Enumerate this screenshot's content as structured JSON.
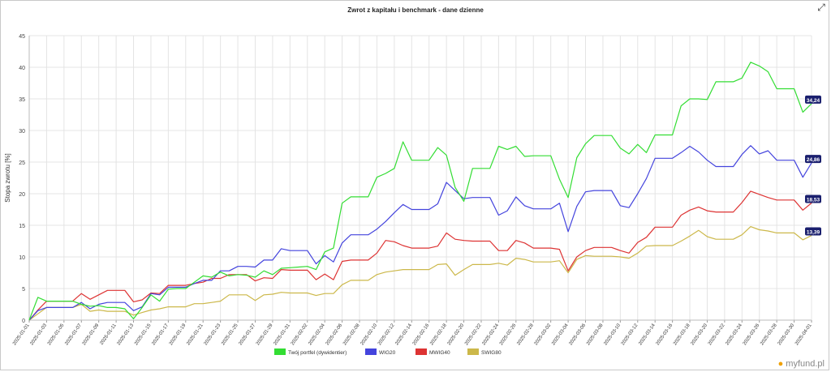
{
  "chart_data": {
    "type": "line",
    "title": "Zwrot z kapitału i benchmark - dane dzienne",
    "ylabel": "Stopa zwrotu [%]",
    "xlabel": "",
    "ylim": [
      0,
      45
    ],
    "yticks": [
      0,
      5,
      10,
      15,
      20,
      25,
      30,
      35,
      40,
      45
    ],
    "grid": true,
    "legend_position": "bottom",
    "x": [
      "2025-01-01",
      "2025-01-02",
      "2025-01-03",
      "2025-01-04",
      "2025-01-05",
      "2025-01-06",
      "2025-01-07",
      "2025-01-08",
      "2025-01-09",
      "2025-01-10",
      "2025-01-11",
      "2025-01-12",
      "2025-01-13",
      "2025-01-14",
      "2025-01-15",
      "2025-01-16",
      "2025-01-17",
      "2025-01-18",
      "2025-01-19",
      "2025-01-20",
      "2025-01-21",
      "2025-01-22",
      "2025-01-23",
      "2025-01-24",
      "2025-01-25",
      "2025-01-26",
      "2025-01-27",
      "2025-01-28",
      "2025-01-29",
      "2025-01-30",
      "2025-01-31",
      "2025-02-01",
      "2025-02-02",
      "2025-02-03",
      "2025-02-04",
      "2025-02-05",
      "2025-02-06",
      "2025-02-07",
      "2025-02-08",
      "2025-02-09",
      "2025-02-10",
      "2025-02-11",
      "2025-02-12",
      "2025-02-13",
      "2025-02-14",
      "2025-02-15",
      "2025-02-16",
      "2025-02-17",
      "2025-02-18",
      "2025-02-19",
      "2025-02-20",
      "2025-02-21",
      "2025-02-22",
      "2025-02-23",
      "2025-02-24",
      "2025-02-25",
      "2025-02-26",
      "2025-02-27",
      "2025-02-28",
      "2025-03-01",
      "2025-03-02",
      "2025-03-03",
      "2025-03-04",
      "2025-03-05",
      "2025-03-06",
      "2025-03-07",
      "2025-03-08",
      "2025-03-09",
      "2025-03-10",
      "2025-03-11",
      "2025-03-12",
      "2025-03-13",
      "2025-03-14",
      "2025-03-15",
      "2025-03-16",
      "2025-03-17",
      "2025-03-18",
      "2025-03-19",
      "2025-03-20",
      "2025-03-21",
      "2025-03-22",
      "2025-03-23",
      "2025-03-24",
      "2025-03-25",
      "2025-03-26",
      "2025-03-27",
      "2025-03-28",
      "2025-03-29",
      "2025-03-30",
      "2025-03-31",
      "2025-04-01"
    ],
    "xtick_labels": [
      "2025-01-01",
      "2025-01-03",
      "2025-01-05",
      "2025-01-07",
      "2025-01-09",
      "2025-01-11",
      "2025-01-13",
      "2025-01-15",
      "2025-01-17",
      "2025-01-19",
      "2025-01-21",
      "2025-01-23",
      "2025-01-25",
      "2025-01-27",
      "2025-01-29",
      "2025-01-31",
      "2025-02-02",
      "2025-02-04",
      "2025-02-06",
      "2025-02-08",
      "2025-02-10",
      "2025-02-12",
      "2025-02-14",
      "2025-02-16",
      "2025-02-18",
      "2025-02-20",
      "2025-02-22",
      "2025-02-24",
      "2025-02-26",
      "2025-02-28",
      "2025-03-02",
      "2025-03-04",
      "2025-03-06",
      "2025-03-08",
      "2025-03-10",
      "2025-03-12",
      "2025-03-14",
      "2025-03-16",
      "2025-03-18",
      "2025-03-20",
      "2025-03-22",
      "2025-03-24",
      "2025-03-26",
      "2025-03-28",
      "2025-03-30",
      "2025-04-01"
    ],
    "series": [
      {
        "name": "Twój portfel (dywidentier)",
        "color": "#33dd33",
        "end_label": "34,24",
        "values": [
          0,
          3.6,
          3,
          3,
          3,
          3,
          2.5,
          2.2,
          2.3,
          2,
          2,
          1.8,
          0.2,
          2,
          4,
          3,
          4.9,
          5,
          5,
          6,
          7,
          6.8,
          7.6,
          7,
          7.2,
          7.1,
          6.8,
          7.8,
          7.2,
          8.2,
          8.3,
          8.4,
          8.5,
          8,
          10.8,
          11.4,
          18.5,
          19.5,
          19.5,
          19.5,
          22.6,
          23.2,
          24,
          28.2,
          25.3,
          25.3,
          25.3,
          27.3,
          26.1,
          21,
          18.8,
          24,
          24,
          24,
          27.5,
          27,
          27.5,
          25.9,
          26,
          26,
          26,
          22.3,
          19.4,
          25.7,
          27.9,
          29.2,
          29.2,
          29.2,
          27.2,
          26.3,
          27.8,
          26.5,
          29.3,
          29.3,
          29.3,
          33.9,
          35,
          35,
          34.9,
          37.7,
          37.7,
          37.7,
          38.3,
          40.8,
          40.2,
          39.3,
          36.6,
          36.6,
          36.6,
          32.9,
          34.24
        ]
      },
      {
        "name": "WIG20",
        "color": "#4444dd",
        "end_label": "24,86",
        "values": [
          0,
          1.5,
          2,
          2,
          2,
          2,
          2.8,
          1.8,
          2.5,
          2.8,
          2.8,
          2.8,
          1.5,
          2.1,
          4.2,
          4,
          5.2,
          5.2,
          5.2,
          5.8,
          6.3,
          6.3,
          7.8,
          7.8,
          8.5,
          8.5,
          8.4,
          9.5,
          9.5,
          11.3,
          11,
          11,
          11,
          8.9,
          10.2,
          9.2,
          12.2,
          13.5,
          13.5,
          13.5,
          14.4,
          15.6,
          17,
          18.3,
          17.5,
          17.5,
          17.5,
          18.4,
          21.8,
          20.5,
          19.2,
          19.4,
          19.4,
          19.4,
          16.6,
          17.3,
          19.5,
          18.1,
          17.6,
          17.6,
          17.6,
          18.5,
          14,
          18,
          20.3,
          20.5,
          20.5,
          20.5,
          18.1,
          17.8,
          20,
          22.4,
          25.6,
          25.6,
          25.6,
          26.5,
          27.5,
          26.6,
          25.3,
          24.3,
          24.3,
          24.3,
          26.2,
          27.6,
          26.3,
          26.8,
          25.3,
          25.3,
          25.3,
          22.6,
          24.86
        ]
      },
      {
        "name": "MWIG40",
        "color": "#dd3333",
        "end_label": "18,53",
        "values": [
          0,
          1.6,
          3,
          3,
          3,
          3,
          4.2,
          3.3,
          4,
          4.7,
          4.7,
          4.7,
          2.9,
          3.2,
          4.3,
          4.2,
          5.5,
          5.5,
          5.5,
          5.8,
          6,
          6.6,
          6.6,
          7.2,
          7.2,
          7.2,
          6.2,
          6.7,
          6.6,
          8,
          7.9,
          7.9,
          7.9,
          6.4,
          7.3,
          6.4,
          9.3,
          9.5,
          9.5,
          9.5,
          10.6,
          12.6,
          12.4,
          11.8,
          11.4,
          11.4,
          11.4,
          11.7,
          13.8,
          12.8,
          12.6,
          12.5,
          12.5,
          12.5,
          11,
          11,
          12.6,
          12.2,
          11.4,
          11.4,
          11.4,
          11.2,
          7.8,
          10,
          11,
          11.5,
          11.5,
          11.5,
          11,
          10.6,
          12.3,
          13.1,
          14.7,
          14.7,
          14.7,
          16.6,
          17.4,
          17.9,
          17.3,
          17.1,
          17.1,
          17.1,
          18.6,
          20.4,
          19.9,
          19.4,
          19,
          19,
          19,
          17.4,
          18.53
        ]
      },
      {
        "name": "SWIG80",
        "color": "#ccb84a",
        "end_label": "13,39",
        "values": [
          0,
          1,
          2,
          2,
          2,
          2,
          2.5,
          1.4,
          1.6,
          1.4,
          1.4,
          1.4,
          0.8,
          1.2,
          1.6,
          1.8,
          2.1,
          2.1,
          2.1,
          2.6,
          2.6,
          2.8,
          3,
          4,
          4,
          4,
          3.1,
          4,
          4.1,
          4.4,
          4.3,
          4.3,
          4.3,
          3.9,
          4.2,
          4.2,
          5.6,
          6.3,
          6.3,
          6.3,
          7.2,
          7.6,
          7.8,
          8,
          8,
          8,
          8,
          8.8,
          8.9,
          7.1,
          8,
          8.8,
          8.8,
          8.8,
          9,
          8.7,
          9.8,
          9.6,
          9.2,
          9.2,
          9.2,
          9.4,
          7.5,
          9.6,
          10.2,
          10.1,
          10.1,
          10.1,
          10,
          9.8,
          10.6,
          11.7,
          11.8,
          11.8,
          11.8,
          12.5,
          13.3,
          14.2,
          13.2,
          12.8,
          12.8,
          12.8,
          13.5,
          14.8,
          14.3,
          14.1,
          13.8,
          13.8,
          13.8,
          12.7,
          13.39
        ]
      }
    ]
  },
  "ui": {
    "expand_icon": "expand-arrows-icon",
    "logo_text": "myfund",
    "logo_suffix": ".pl"
  }
}
